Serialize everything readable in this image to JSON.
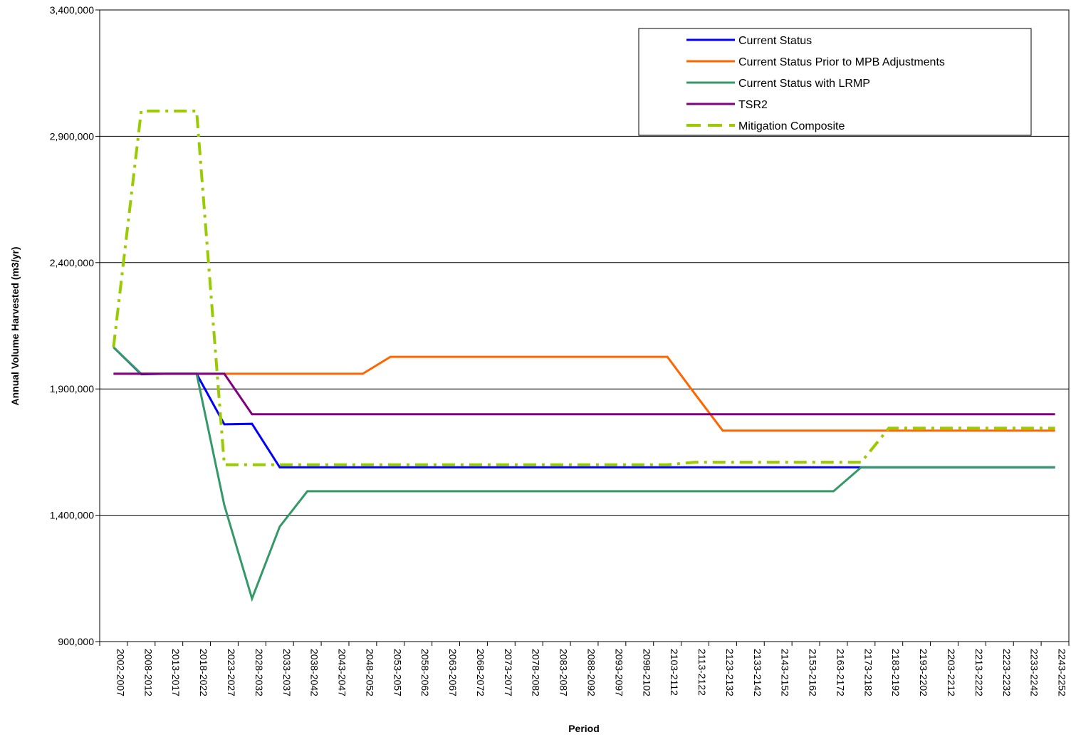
{
  "chart_data": {
    "type": "line",
    "title": "",
    "xlabel": "Period",
    "ylabel": "Annual Volume Harvested (m3/yr)",
    "ylim": [
      900000,
      3400000
    ],
    "yticks": [
      900000,
      1400000,
      1900000,
      2400000,
      2900000,
      3400000
    ],
    "ytick_labels": [
      "900,000",
      "1,400,000",
      "1,900,000",
      "2,400,000",
      "2,900,000",
      "3,400,000"
    ],
    "grid": "horizontal",
    "legend_position": "top-right",
    "categories": [
      "2002-2007",
      "2008-2012",
      "2013-2017",
      "2018-2022",
      "2023-2027",
      "2028-2032",
      "2033-2037",
      "2038-2042",
      "2043-2047",
      "2048-2052",
      "2053-2057",
      "2058-2062",
      "2063-2067",
      "2068-2072",
      "2073-2077",
      "2078-2082",
      "2083-2087",
      "2088-2092",
      "2093-2097",
      "2098-2102",
      "2103-2112",
      "2113-2122",
      "2123-2132",
      "2133-2142",
      "2143-2152",
      "2153-2162",
      "2163-2172",
      "2173-2182",
      "2183-2192",
      "2193-2202",
      "2203-2212",
      "2213-2222",
      "2223-2232",
      "2233-2242",
      "2243-2252"
    ],
    "series": [
      {
        "name": "Current Status",
        "color": "#0000ff",
        "dash": "solid",
        "values": [
          2065000,
          1958000,
          1960000,
          1960000,
          1760000,
          1762000,
          1590000,
          1590000,
          1590000,
          1590000,
          1590000,
          1590000,
          1590000,
          1590000,
          1590000,
          1590000,
          1590000,
          1590000,
          1590000,
          1590000,
          1590000,
          1590000,
          1590000,
          1590000,
          1590000,
          1590000,
          1590000,
          1590000,
          1590000,
          1590000,
          1590000,
          1590000,
          1590000,
          1590000,
          1590000
        ]
      },
      {
        "name": "Current Status Prior to MPB Adjustments",
        "color": "#ff6600",
        "dash": "solid",
        "values": [
          1960000,
          1960000,
          1960000,
          1960000,
          1960000,
          1960000,
          1960000,
          1960000,
          1960000,
          1960000,
          2027000,
          2027000,
          2027000,
          2027000,
          2027000,
          2027000,
          2027000,
          2027000,
          2027000,
          2027000,
          2027000,
          1880000,
          1735000,
          1735000,
          1735000,
          1735000,
          1735000,
          1735000,
          1735000,
          1735000,
          1735000,
          1735000,
          1735000,
          1735000,
          1735000
        ]
      },
      {
        "name": "Current Status with LRMP",
        "color": "#339966",
        "dash": "solid",
        "values": [
          2065000,
          1960000,
          1960000,
          1960000,
          1440000,
          1070000,
          1355000,
          1495000,
          1495000,
          1495000,
          1495000,
          1495000,
          1495000,
          1495000,
          1495000,
          1495000,
          1495000,
          1495000,
          1495000,
          1495000,
          1495000,
          1495000,
          1495000,
          1495000,
          1495000,
          1495000,
          1495000,
          1590000,
          1590000,
          1590000,
          1590000,
          1590000,
          1590000,
          1590000,
          1590000
        ]
      },
      {
        "name": "TSR2",
        "color": "#800080",
        "dash": "solid",
        "values": [
          1960000,
          1960000,
          1960000,
          1960000,
          1960000,
          1800000,
          1800000,
          1800000,
          1800000,
          1800000,
          1800000,
          1800000,
          1800000,
          1800000,
          1800000,
          1800000,
          1800000,
          1800000,
          1800000,
          1800000,
          1800000,
          1800000,
          1800000,
          1800000,
          1800000,
          1800000,
          1800000,
          1800000,
          1800000,
          1800000,
          1800000,
          1800000,
          1800000,
          1800000,
          1800000
        ]
      },
      {
        "name": "Mitigation Composite",
        "color": "#99cc00",
        "dash": "dashdot",
        "values": [
          2065000,
          3000000,
          3000000,
          3000000,
          1600000,
          1600000,
          1600000,
          1600000,
          1600000,
          1600000,
          1600000,
          1600000,
          1600000,
          1600000,
          1600000,
          1600000,
          1600000,
          1600000,
          1600000,
          1600000,
          1600000,
          1610000,
          1610000,
          1610000,
          1610000,
          1610000,
          1610000,
          1610000,
          1745000,
          1745000,
          1745000,
          1745000,
          1745000,
          1745000,
          1745000
        ]
      }
    ]
  }
}
